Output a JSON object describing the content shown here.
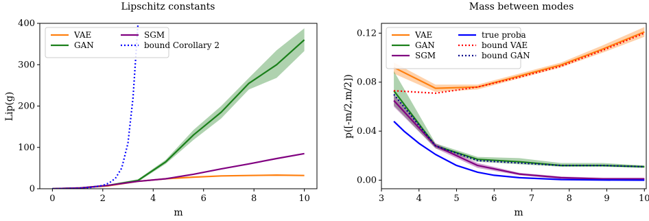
{
  "chart_data": [
    {
      "type": "line",
      "title": "Lipschitz constants",
      "xlabel": "m",
      "ylabel": "Lip(g)",
      "xlim": [
        -0.5,
        10.5
      ],
      "ylim": [
        0,
        400
      ],
      "xticks": [
        0,
        2,
        4,
        6,
        8,
        10
      ],
      "yticks": [
        0,
        100,
        200,
        300,
        400
      ],
      "legend_position": "top-left",
      "legend_columns": 2,
      "series": [
        {
          "name": "VAE",
          "color": "#ff7f0e",
          "style": "solid",
          "x": [
            0,
            1.1,
            2.2,
            3.4,
            4.5,
            5.6,
            6.7,
            7.8,
            8.9,
            10
          ],
          "y": [
            0,
            2,
            7,
            18,
            24,
            28,
            31,
            32,
            33,
            32
          ]
        },
        {
          "name": "GAN",
          "color": "#1a7f1a",
          "style": "solid",
          "x": [
            0,
            1.1,
            2.2,
            3.4,
            4.5,
            5.6,
            6.7,
            7.8,
            8.9,
            10
          ],
          "y": [
            0,
            2,
            8,
            20,
            65,
            130,
            185,
            255,
            300,
            360
          ],
          "band_low": [
            0,
            1,
            6,
            17,
            60,
            118,
            170,
            240,
            268,
            333
          ],
          "band_high": [
            0,
            3,
            10,
            23,
            70,
            142,
            200,
            268,
            335,
            388
          ]
        },
        {
          "name": "SGM",
          "color": "#800080",
          "style": "solid",
          "x": [
            0,
            1.1,
            2.2,
            3.4,
            4.5,
            5.6,
            6.7,
            7.8,
            8.9,
            10
          ],
          "y": [
            0,
            2,
            8,
            18,
            24,
            35,
            48,
            60,
            73,
            85
          ]
        },
        {
          "name": "bound Corollary 2",
          "color": "#0000ff",
          "style": "dotted",
          "x": [
            0,
            0.5,
            1,
            1.5,
            2,
            2.25,
            2.5,
            2.75,
            3,
            3.2,
            3.4
          ],
          "y": [
            0,
            0.3,
            1,
            3,
            8,
            14,
            25,
            50,
            110,
            220,
            400
          ]
        }
      ]
    },
    {
      "type": "line",
      "title": "Mass between modes",
      "xlabel": "m",
      "ylabel": "p([-m/2,m/2])",
      "xlim": [
        3,
        10.05
      ],
      "ylim": [
        -0.007,
        0.128
      ],
      "xticks": [
        3,
        4,
        5,
        6,
        7,
        8,
        9,
        10
      ],
      "yticks": [
        0.0,
        0.04,
        0.08,
        0.12
      ],
      "ytick_labels": [
        "0.00",
        "0.04",
        "0.08",
        "0.12"
      ],
      "legend_position": "top-left",
      "legend_columns": 2,
      "series": [
        {
          "name": "VAE",
          "color": "#ff7f0e",
          "style": "solid",
          "x": [
            3.33,
            4.44,
            5.56,
            6.67,
            7.78,
            8.89,
            10
          ],
          "y": [
            0.092,
            0.075,
            0.076,
            0.085,
            0.094,
            0.107,
            0.121
          ],
          "band_low": [
            0.087,
            0.072,
            0.074,
            0.083,
            0.092,
            0.104,
            0.117
          ],
          "band_high": [
            0.096,
            0.078,
            0.078,
            0.087,
            0.096,
            0.11,
            0.125
          ]
        },
        {
          "name": "GAN",
          "color": "#1a7f1a",
          "style": "solid",
          "x": [
            3.33,
            4.44,
            5.56,
            6.67,
            7.78,
            8.89,
            10
          ],
          "y": [
            0.073,
            0.028,
            0.017,
            0.015,
            0.012,
            0.012,
            0.011
          ],
          "band_low": [
            0.061,
            0.026,
            0.015,
            0.013,
            0.011,
            0.011,
            0.01
          ],
          "band_high": [
            0.089,
            0.03,
            0.019,
            0.018,
            0.014,
            0.014,
            0.012
          ]
        },
        {
          "name": "SGM",
          "color": "#800080",
          "style": "solid",
          "x": [
            3.33,
            4.44,
            5.56,
            6.67,
            7.78,
            8.89,
            10
          ],
          "y": [
            0.065,
            0.028,
            0.012,
            0.005,
            0.002,
            0.001,
            0.001
          ],
          "band_low": [
            0.06,
            0.026,
            0.01,
            0.004,
            0.001,
            0.0005,
            0.0005
          ],
          "band_high": [
            0.07,
            0.03,
            0.014,
            0.006,
            0.003,
            0.002,
            0.002
          ]
        },
        {
          "name": "true proba",
          "color": "#0000ff",
          "style": "solid",
          "x": [
            3.33,
            3.6,
            4.0,
            4.44,
            5.0,
            5.56,
            6.0,
            6.67,
            7.78,
            8.89,
            10
          ],
          "y": [
            0.048,
            0.04,
            0.03,
            0.021,
            0.012,
            0.0065,
            0.004,
            0.002,
            0.0005,
            0.0001,
            0.0
          ]
        },
        {
          "name": "bound VAE",
          "color": "#ff0000",
          "style": "dotted",
          "x": [
            3.33,
            4.44,
            5.56,
            6.67,
            7.78,
            8.89,
            10
          ],
          "y": [
            0.073,
            0.071,
            0.076,
            0.084,
            0.093,
            0.106,
            0.12
          ]
        },
        {
          "name": "bound GAN",
          "color": "#00008b",
          "style": "dotted",
          "x": [
            3.33,
            4.44,
            5.56,
            6.67,
            7.78,
            8.89,
            10
          ],
          "y": [
            0.07,
            0.028,
            0.016,
            0.014,
            0.012,
            0.012,
            0.011
          ]
        }
      ]
    }
  ]
}
